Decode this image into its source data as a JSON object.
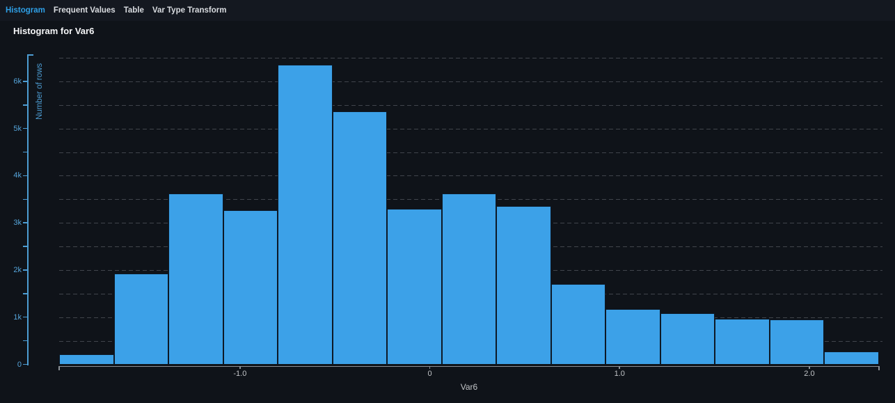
{
  "tabs": {
    "items": [
      {
        "label": "Histogram",
        "active": true
      },
      {
        "label": "Frequent Values",
        "active": false
      },
      {
        "label": "Table",
        "active": false
      },
      {
        "label": "Var Type Transform",
        "active": false
      }
    ]
  },
  "page": {
    "title": "Histogram for Var6"
  },
  "colors": {
    "background": "#0f1319",
    "tabbar_background": "#141820",
    "tab_active": "#2e9fe6",
    "tab_inactive": "#d9dce0",
    "title_text": "#f5f6f8",
    "bar_fill": "#3ca1e8",
    "bar_border": "#0d1926",
    "y_axis": "#4d9dd3",
    "x_axis_line": "#8b9095",
    "x_axis_text": "#c2c5c8",
    "gridline": "#41454c"
  },
  "chart_data": {
    "type": "bar",
    "subtype": "histogram",
    "title": "Histogram for Var6",
    "xlabel": "Var6",
    "ylabel": "Number of rows",
    "bin_edges": [
      -1.953,
      -1.665,
      -1.377,
      -1.089,
      -0.801,
      -0.513,
      -0.225,
      0.063,
      0.351,
      0.639,
      0.927,
      1.215,
      1.503,
      1.791,
      2.079,
      2.367
    ],
    "counts": [
      220,
      1930,
      3620,
      3270,
      6350,
      5360,
      3300,
      3620,
      3350,
      1700,
      1180,
      1080,
      960,
      950,
      270
    ],
    "xlim": [
      -1.953,
      2.367
    ],
    "ylim": [
      0,
      6500
    ],
    "x_ticks": [
      {
        "value": -1,
        "label": "-1.0"
      },
      {
        "value": 0,
        "label": "0"
      },
      {
        "value": 1,
        "label": "1.0"
      },
      {
        "value": 2,
        "label": "2.0"
      }
    ],
    "y_ticks": [
      {
        "value": 0,
        "label": "0"
      },
      {
        "value": 1000,
        "label": "1k"
      },
      {
        "value": 2000,
        "label": "2k"
      },
      {
        "value": 3000,
        "label": "3k"
      },
      {
        "value": 4000,
        "label": "4k"
      },
      {
        "value": 5000,
        "label": "5k"
      },
      {
        "value": 6000,
        "label": "6k"
      }
    ],
    "y_minor_tick_interval": 500,
    "grid": "horizontal dashed lines every 500, no vertical gridlines",
    "legend": "none"
  }
}
